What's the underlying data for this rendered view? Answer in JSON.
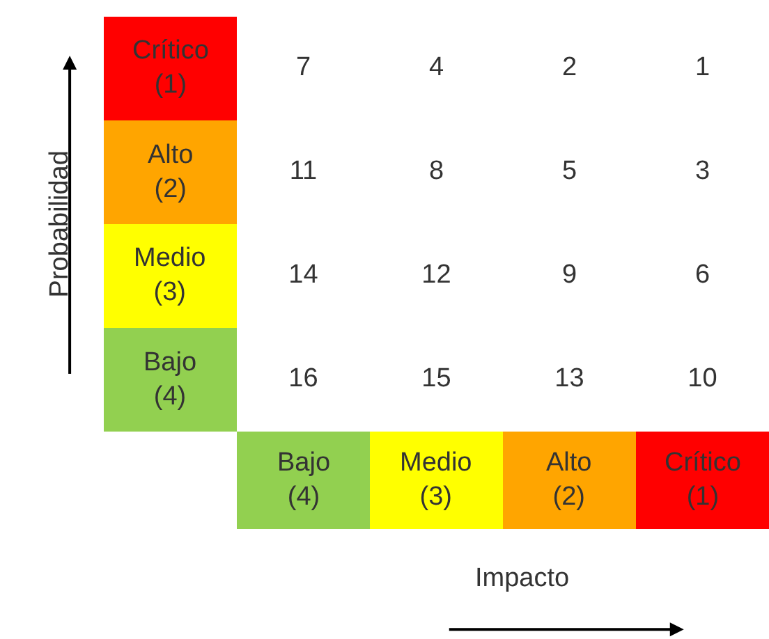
{
  "chart_data": {
    "type": "heatmap",
    "xlabel": "Impacto",
    "ylabel": "Probabilidad",
    "categories": [
      "Bajo (4)",
      "Medio (3)",
      "Alto (2)",
      "Crítico (1)"
    ],
    "y_categories": [
      "Crítico (1)",
      "Alto (2)",
      "Medio (3)",
      "Bajo (4)"
    ],
    "cells": [
      [
        7,
        4,
        2,
        1
      ],
      [
        11,
        8,
        5,
        3
      ],
      [
        14,
        12,
        9,
        6
      ],
      [
        16,
        15,
        13,
        10
      ]
    ],
    "data_labels": true
  }
}
